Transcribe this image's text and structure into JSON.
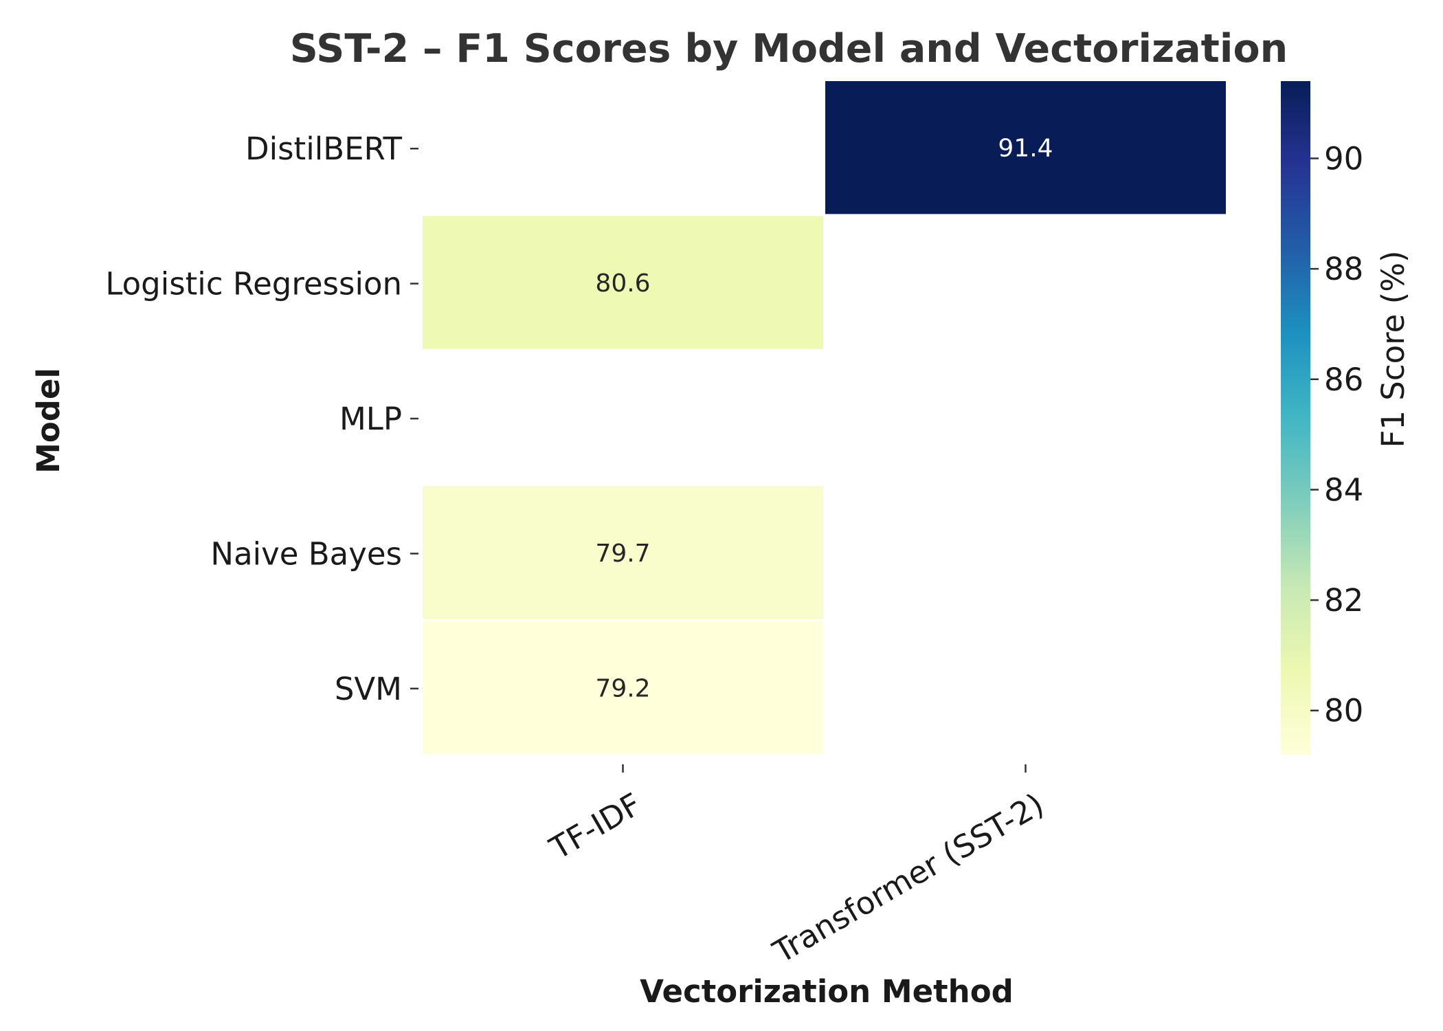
{
  "chart_data": {
    "type": "heatmap",
    "title": "SST-2 – F1 Scores by Model and Vectorization",
    "xlabel": "Vectorization Method",
    "ylabel": "Model",
    "x_categories": [
      "TF-IDF",
      "Transformer (SST-2)"
    ],
    "y_categories": [
      "DistilBERT",
      "Logistic Regression",
      "MLP",
      "Naive Bayes",
      "SVM"
    ],
    "values": [
      [
        null,
        91.4
      ],
      [
        80.6,
        null
      ],
      [
        null,
        null
      ],
      [
        79.7,
        null
      ],
      [
        79.2,
        null
      ]
    ],
    "value_labels": [
      [
        "",
        "91.4"
      ],
      [
        "80.6",
        ""
      ],
      [
        "",
        ""
      ],
      [
        "79.7",
        ""
      ],
      [
        "79.2",
        ""
      ]
    ],
    "colorbar": {
      "label": "F1 Score (%)",
      "range": [
        79.2,
        91.4
      ],
      "ticks": [
        80,
        82,
        84,
        86,
        88,
        90
      ],
      "colormap": "YlGnBu",
      "colormap_stops": [
        "#ffffd9",
        "#edf8b1",
        "#c7e9b4",
        "#7fcdbb",
        "#41b6c4",
        "#1d91c0",
        "#225ea8",
        "#253494",
        "#081d58"
      ]
    },
    "grid": false,
    "legend": "colorbar-right"
  }
}
